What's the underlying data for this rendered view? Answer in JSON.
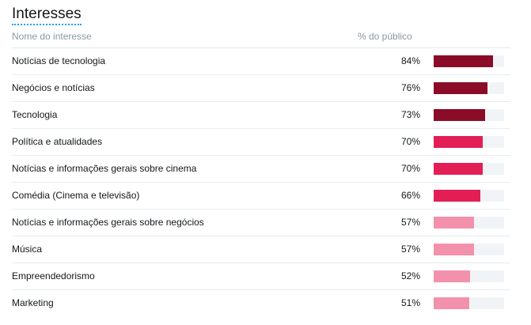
{
  "title": "Interesses",
  "columns": {
    "name": "Nome do interesse",
    "audience": "% do público"
  },
  "colors": {
    "high": "#8a0c26",
    "medium": "#e31e55",
    "low": "#f391ac",
    "track": "#f1f4f7"
  },
  "rows": [
    {
      "name": "Notícias de tecnologia",
      "pct_label": "84%",
      "value": 84,
      "tier": "high"
    },
    {
      "name": "Negócios e notícias",
      "pct_label": "76%",
      "value": 76,
      "tier": "high"
    },
    {
      "name": "Tecnologia",
      "pct_label": "73%",
      "value": 73,
      "tier": "high"
    },
    {
      "name": "Política e atualidades",
      "pct_label": "70%",
      "value": 70,
      "tier": "medium"
    },
    {
      "name": "Notícias e informações gerais sobre cinema",
      "pct_label": "70%",
      "value": 70,
      "tier": "medium"
    },
    {
      "name": "Comédia (Cinema e televisão)",
      "pct_label": "66%",
      "value": 66,
      "tier": "medium"
    },
    {
      "name": "Notícias e informações gerais sobre negócios",
      "pct_label": "57%",
      "value": 57,
      "tier": "low"
    },
    {
      "name": "Música",
      "pct_label": "57%",
      "value": 57,
      "tier": "low"
    },
    {
      "name": "Empreendedorismo",
      "pct_label": "52%",
      "value": 52,
      "tier": "low"
    },
    {
      "name": "Marketing",
      "pct_label": "51%",
      "value": 51,
      "tier": "low"
    }
  ]
}
